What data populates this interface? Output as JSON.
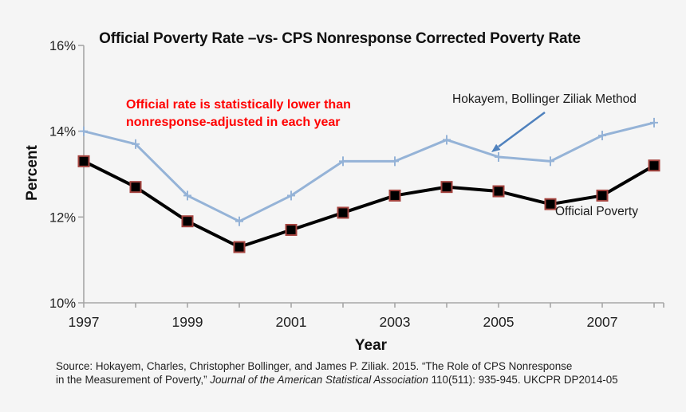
{
  "title": "Official Poverty Rate –vs- CPS Nonresponse Corrected Poverty Rate",
  "annotation": {
    "line1": "Official rate is statistically lower than",
    "line2": "nonresponse-adjusted  in each year"
  },
  "series_labels": {
    "hbz": "Hokayem, Bollinger Ziliak Method",
    "official": "Official Poverty"
  },
  "axis_labels": {
    "y": "Percent",
    "x": "Year"
  },
  "source": {
    "line1": "Source: Hokayem, Charles, Christopher Bollinger, and James P. Ziliak. 2015. “The Role of CPS Nonresponse",
    "line2_prefix": "in the Measurement of Poverty,” ",
    "line2_italic": "Journal of the American Statistical Association",
    "line2_suffix": " 110(511): 935-945. UKCPR DP2014-05"
  },
  "colors": {
    "background": "#f5f5f5",
    "annotation_red": "#FF0000",
    "hbz_line": "#95B3D7",
    "arrow_blue": "#4F81BD",
    "official_line": "#000000",
    "official_marker_edge": "#A5443F",
    "axis": "#A6A6A6",
    "tick_text": "#1f1f1f"
  },
  "chart_data": {
    "type": "line",
    "title": "Official Poverty Rate –vs- CPS Nonresponse Corrected Poverty Rate",
    "xlabel": "Year",
    "ylabel": "Percent",
    "x": [
      1997,
      1998,
      1999,
      2000,
      2001,
      2002,
      2003,
      2004,
      2005,
      2006,
      2007,
      2008
    ],
    "series": [
      {
        "name": "Hokayem, Bollinger Ziliak Method",
        "color": "#95B3D7",
        "marker": "plus",
        "values": [
          14.0,
          13.7,
          12.5,
          11.9,
          12.5,
          13.3,
          13.3,
          13.8,
          13.4,
          13.3,
          13.9,
          14.2
        ]
      },
      {
        "name": "Official Poverty",
        "color": "#000000",
        "marker": "square",
        "marker_edge": "#A5443F",
        "values": [
          13.3,
          12.7,
          11.9,
          11.3,
          11.7,
          12.1,
          12.5,
          12.7,
          12.6,
          12.3,
          12.5,
          13.2
        ]
      }
    ],
    "xlim": [
      1997,
      2008
    ],
    "ylim": [
      10,
      16
    ],
    "yticks": [
      10,
      12,
      14,
      16
    ],
    "ytick_labels": [
      "10%",
      "12%",
      "14%",
      "16%"
    ],
    "xticks_labeled": [
      1997,
      1999,
      2001,
      2003,
      2005,
      2007
    ],
    "grid": false,
    "legend_position": "inline-annotations"
  }
}
